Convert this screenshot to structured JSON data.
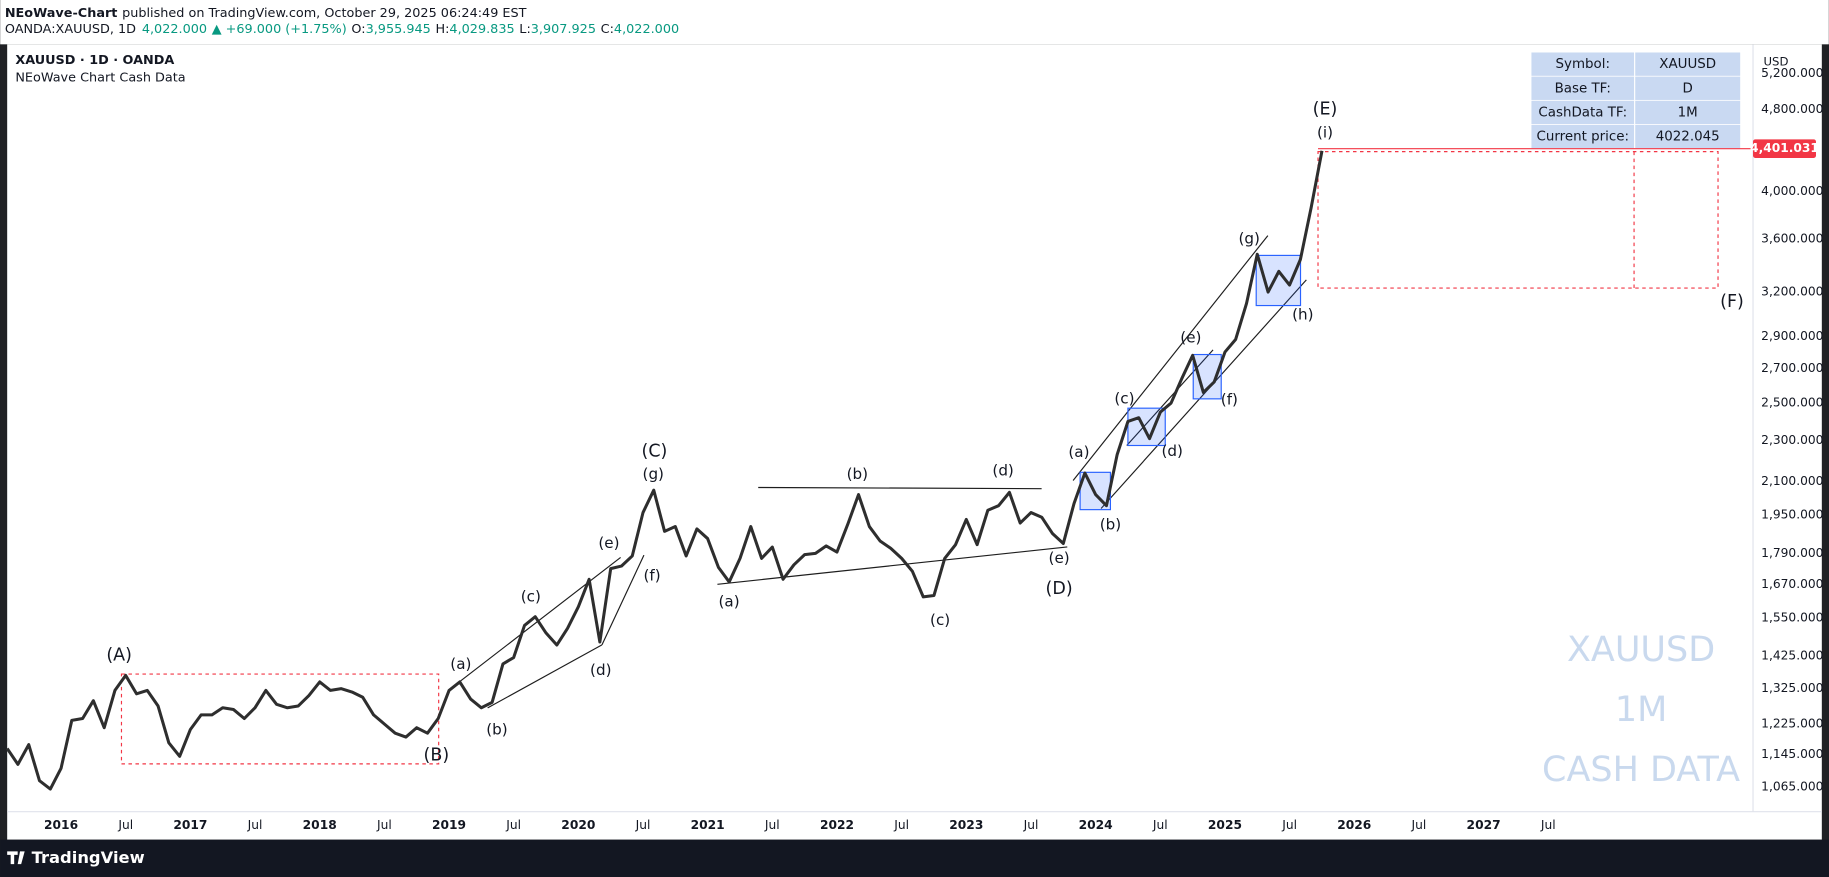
{
  "header": {
    "author": "NEoWave-Chart",
    "published": "published on TradingView.com, October 29, 2025 06:24:49 EST",
    "symbol": "OANDA:XAUUSD, 1D",
    "last": "4,022.000",
    "change": "▲ +69.000 (+1.75%)",
    "ohlc": [
      {
        "label": "O:",
        "value": "3,955.945"
      },
      {
        "label": "H:",
        "value": "4,029.835"
      },
      {
        "label": "L:",
        "value": "3,907.925"
      },
      {
        "label": "C:",
        "value": "4,022.000"
      }
    ]
  },
  "chart_data": {
    "type": "line",
    "title": "XAUUSD · 1D · OANDA",
    "subtitle": "NEoWave Chart Cash Data",
    "y_axis_unit": "USD",
    "color": "#2e2e2e",
    "log_scale": true,
    "grid": false,
    "x": [
      "2015-08",
      "2015-09",
      "2015-10",
      "2015-11",
      "2015-12",
      "2016-01",
      "2016-02",
      "2016-03",
      "2016-04",
      "2016-05",
      "2016-06",
      "2016-07",
      "2016-08",
      "2016-09",
      "2016-10",
      "2016-11",
      "2016-12",
      "2017-01",
      "2017-02",
      "2017-03",
      "2017-04",
      "2017-05",
      "2017-06",
      "2017-07",
      "2017-08",
      "2017-09",
      "2017-10",
      "2017-11",
      "2017-12",
      "2018-01",
      "2018-02",
      "2018-03",
      "2018-04",
      "2018-05",
      "2018-06",
      "2018-07",
      "2018-08",
      "2018-09",
      "2018-10",
      "2018-11",
      "2018-12",
      "2019-01",
      "2019-02",
      "2019-03",
      "2019-04",
      "2019-05",
      "2019-06",
      "2019-07",
      "2019-08",
      "2019-09",
      "2019-10",
      "2019-11",
      "2019-12",
      "2020-01",
      "2020-02",
      "2020-03",
      "2020-04",
      "2020-05",
      "2020-06",
      "2020-07",
      "2020-08",
      "2020-09",
      "2020-10",
      "2020-11",
      "2020-12",
      "2021-01",
      "2021-02",
      "2021-03",
      "2021-04",
      "2021-05",
      "2021-06",
      "2021-07",
      "2021-08",
      "2021-09",
      "2021-10",
      "2021-11",
      "2021-12",
      "2022-01",
      "2022-02",
      "2022-03",
      "2022-04",
      "2022-05",
      "2022-06",
      "2022-07",
      "2022-08",
      "2022-09",
      "2022-10",
      "2022-11",
      "2022-12",
      "2023-01",
      "2023-02",
      "2023-03",
      "2023-04",
      "2023-05",
      "2023-06",
      "2023-07",
      "2023-08",
      "2023-09",
      "2023-10",
      "2023-11",
      "2023-12",
      "2024-01",
      "2024-02",
      "2024-03",
      "2024-04",
      "2024-05",
      "2024-06",
      "2024-07",
      "2024-08",
      "2024-09",
      "2024-10",
      "2024-11",
      "2024-12",
      "2025-01",
      "2025-02",
      "2025-03",
      "2025-04",
      "2025-05",
      "2025-06",
      "2025-07",
      "2025-08",
      "2025-09",
      "2025-10"
    ],
    "values": [
      1160,
      1120,
      1170,
      1080,
      1060,
      1110,
      1235,
      1240,
      1290,
      1215,
      1320,
      1365,
      1310,
      1320,
      1275,
      1175,
      1140,
      1210,
      1250,
      1250,
      1270,
      1265,
      1240,
      1270,
      1320,
      1280,
      1270,
      1275,
      1305,
      1345,
      1320,
      1325,
      1315,
      1300,
      1250,
      1225,
      1200,
      1190,
      1215,
      1200,
      1240,
      1320,
      1345,
      1295,
      1270,
      1285,
      1400,
      1420,
      1525,
      1555,
      1500,
      1460,
      1515,
      1590,
      1690,
      1470,
      1730,
      1740,
      1780,
      1960,
      2060,
      1880,
      1900,
      1780,
      1890,
      1850,
      1735,
      1680,
      1770,
      1900,
      1770,
      1815,
      1690,
      1745,
      1785,
      1790,
      1820,
      1795,
      1910,
      2040,
      1900,
      1840,
      1810,
      1770,
      1720,
      1625,
      1630,
      1770,
      1825,
      1930,
      1825,
      1970,
      1990,
      2050,
      1915,
      1960,
      1940,
      1870,
      1830,
      2000,
      2140,
      2040,
      1990,
      2230,
      2400,
      2420,
      2310,
      2450,
      2500,
      2640,
      2780,
      2560,
      2620,
      2800,
      2880,
      3120,
      3480,
      3200,
      3350,
      3250,
      3440,
      3860,
      4380
    ],
    "xlim": [
      "2015-08",
      "2029-02"
    ],
    "xticks": [
      {
        "value": "2016-01",
        "label": "2016"
      },
      {
        "value": "2016-07",
        "label": "Jul"
      },
      {
        "value": "2017-01",
        "label": "2017"
      },
      {
        "value": "2017-07",
        "label": "Jul"
      },
      {
        "value": "2018-01",
        "label": "2018"
      },
      {
        "value": "2018-07",
        "label": "Jul"
      },
      {
        "value": "2019-01",
        "label": "2019"
      },
      {
        "value": "2019-07",
        "label": "Jul"
      },
      {
        "value": "2020-01",
        "label": "2020"
      },
      {
        "value": "2020-07",
        "label": "Jul"
      },
      {
        "value": "2021-01",
        "label": "2021"
      },
      {
        "value": "2021-07",
        "label": "Jul"
      },
      {
        "value": "2022-01",
        "label": "2022"
      },
      {
        "value": "2022-07",
        "label": "Jul"
      },
      {
        "value": "2023-01",
        "label": "2023"
      },
      {
        "value": "2023-07",
        "label": "Jul"
      },
      {
        "value": "2024-01",
        "label": "2024"
      },
      {
        "value": "2024-07",
        "label": "Jul"
      },
      {
        "value": "2025-01",
        "label": "2025"
      },
      {
        "value": "2025-07",
        "label": "Jul"
      },
      {
        "value": "2026-01",
        "label": "2026"
      },
      {
        "value": "2026-07",
        "label": "Jul"
      },
      {
        "value": "2027-01",
        "label": "2027"
      },
      {
        "value": "2027-07",
        "label": "Jul"
      }
    ],
    "ylim": [
      1008,
      5550
    ],
    "yticks": [
      {
        "value": 1065,
        "label": "1,065.000"
      },
      {
        "value": 1145,
        "label": "1,145.000"
      },
      {
        "value": 1225,
        "label": "1,225.000"
      },
      {
        "value": 1325,
        "label": "1,325.000"
      },
      {
        "value": 1425,
        "label": "1,425.000"
      },
      {
        "value": 1550,
        "label": "1,550.000"
      },
      {
        "value": 1670,
        "label": "1,670.000"
      },
      {
        "value": 1790,
        "label": "1,790.000"
      },
      {
        "value": 1950,
        "label": "1,950.000"
      },
      {
        "value": 2100,
        "label": "2,100.000"
      },
      {
        "value": 2300,
        "label": "2,300.000"
      },
      {
        "value": 2500,
        "label": "2,500.000"
      },
      {
        "value": 2700,
        "label": "2,700.000"
      },
      {
        "value": 2900,
        "label": "2,900.000"
      },
      {
        "value": 3200,
        "label": "3,200.000"
      },
      {
        "value": 3600,
        "label": "3,600.000"
      },
      {
        "value": 4000,
        "label": "4,000.000"
      },
      {
        "value": 4800,
        "label": "4,800.000"
      },
      {
        "value": 5200,
        "label": "5,200.000"
      }
    ],
    "price_line": {
      "value": 4401.031,
      "label": "4,401.031"
    },
    "wave_labels": [
      "(A)",
      "(B)",
      "(C)",
      "(g)",
      "(a)",
      "(b)",
      "(c)",
      "(d)",
      "(e)",
      "(f)",
      "(a)",
      "(b)",
      "(c)",
      "(d)",
      "(e)",
      "(D)",
      "(a)",
      "(b)",
      "(c)",
      "(d)",
      "(e)",
      "(f)",
      "(g)",
      "(h)",
      "(i)",
      "(E)",
      "(F)"
    ],
    "info_table": [
      [
        "Symbol:",
        "XAUUSD"
      ],
      [
        "Base TF:",
        "D"
      ],
      [
        "CashData TF:",
        "1M"
      ],
      [
        "Current price:",
        "4022.045"
      ]
    ],
    "watermark": [
      "XAUUSD",
      "1M",
      "CASH DATA"
    ]
  },
  "footer": {
    "brand": "TradingView"
  }
}
